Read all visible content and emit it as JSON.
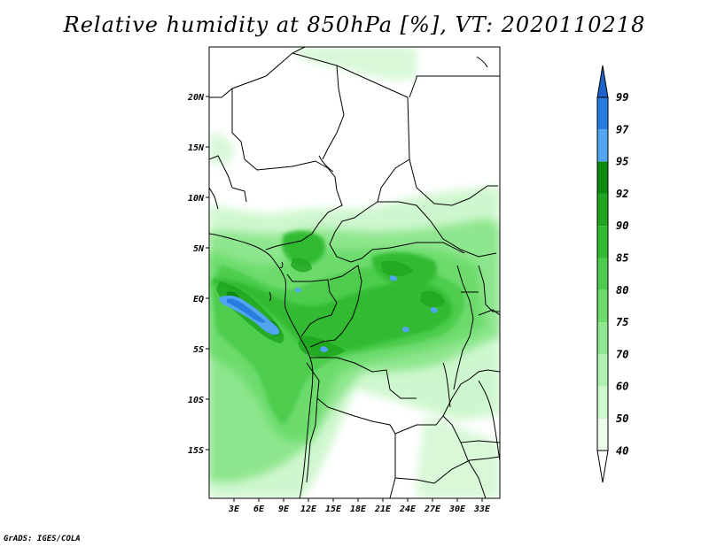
{
  "title": "Relative humidity at 850hPa [%], VT: 2020110218",
  "footer": "GrADS: IGES/COLA",
  "axes": {
    "lat_ticks": [
      "20N",
      "15N",
      "10N",
      "5N",
      "EQ",
      "5S",
      "10S",
      "15S"
    ],
    "lon_ticks": [
      "3E",
      "6E",
      "9E",
      "12E",
      "15E",
      "18E",
      "21E",
      "24E",
      "27E",
      "30E",
      "33E"
    ]
  },
  "colorbar": {
    "levels": [
      "99",
      "97",
      "95",
      "92",
      "90",
      "85",
      "80",
      "75",
      "70",
      "60",
      "50",
      "40"
    ],
    "colors": {
      "99": "#1c62c9",
      "97": "#2a7de0",
      "95": "#52a5f0",
      "92": "#0c8a0c",
      "90": "#1fa51f",
      "85": "#33bb33",
      "80": "#4dcc4d",
      "75": "#6cdb6c",
      "70": "#8ee68e",
      "60": "#b0f0b0",
      "50": "#cff7cf",
      "40": "#ecfdec"
    }
  }
}
